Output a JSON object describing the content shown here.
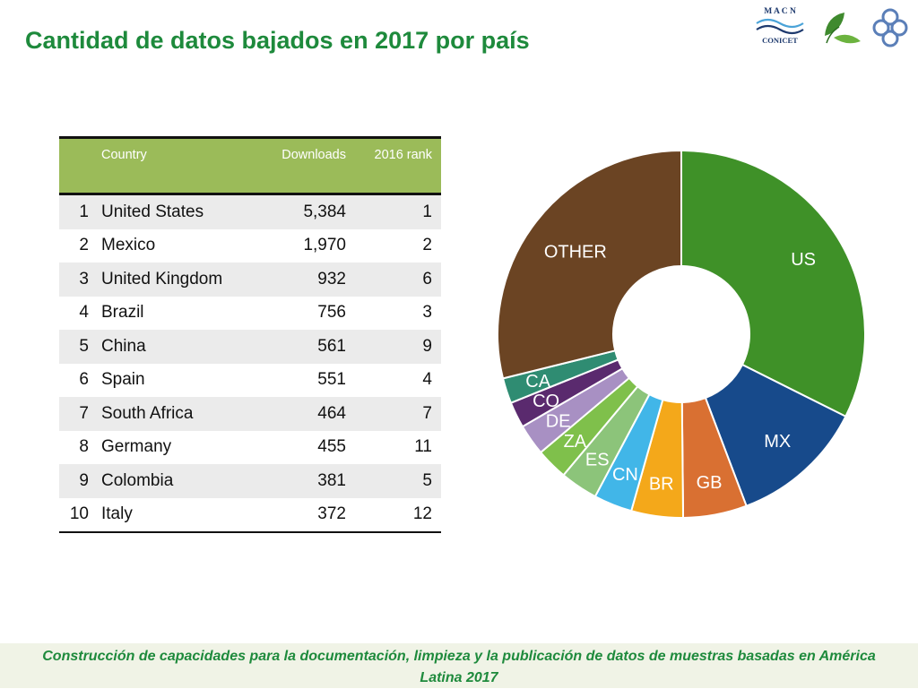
{
  "page": {
    "title": "Cantidad de datos bajados en 2017 por país",
    "footer_line1": "Construcción de capacidades para la documentación, limpieza y la publicación de datos de muestras basadas en América",
    "footer_line2": "Latina 2017"
  },
  "logos": {
    "macn_text": "M A C N",
    "conicet_text": "CONICET",
    "icons": [
      "macn-conicet-logo",
      "leaf-icon",
      "rings-icon"
    ]
  },
  "table": {
    "headers": {
      "index": "",
      "country": "Country",
      "downloads": "Downloads",
      "rank2016": "2016 rank"
    },
    "rows": [
      {
        "n": "1",
        "country": "United States",
        "downloads": "5,384",
        "rank2016": "1"
      },
      {
        "n": "2",
        "country": "Mexico",
        "downloads": "1,970",
        "rank2016": "2"
      },
      {
        "n": "3",
        "country": "United Kingdom",
        "downloads": "932",
        "rank2016": "6"
      },
      {
        "n": "4",
        "country": "Brazil",
        "downloads": "756",
        "rank2016": "3"
      },
      {
        "n": "5",
        "country": "China",
        "downloads": "561",
        "rank2016": "9"
      },
      {
        "n": "6",
        "country": "Spain",
        "downloads": "551",
        "rank2016": "4"
      },
      {
        "n": "7",
        "country": "South Africa",
        "downloads": "464",
        "rank2016": "7"
      },
      {
        "n": "8",
        "country": "Germany",
        "downloads": "455",
        "rank2016": "11"
      },
      {
        "n": "9",
        "country": "Colombia",
        "downloads": "381",
        "rank2016": "5"
      },
      {
        "n": "10",
        "country": "Italy",
        "downloads": "372",
        "rank2016": "12"
      }
    ]
  },
  "chart_data": [
    {
      "type": "table",
      "columns": [
        "",
        "Country",
        "Downloads",
        "2016 rank"
      ],
      "rows": [
        [
          "1",
          "United States",
          5384,
          1
        ],
        [
          "2",
          "Mexico",
          1970,
          2
        ],
        [
          "3",
          "United Kingdom",
          932,
          6
        ],
        [
          "4",
          "Brazil",
          756,
          3
        ],
        [
          "5",
          "China",
          561,
          9
        ],
        [
          "6",
          "Spain",
          551,
          4
        ],
        [
          "7",
          "South Africa",
          464,
          7
        ],
        [
          "8",
          "Germany",
          455,
          11
        ],
        [
          "9",
          "Colombia",
          381,
          5
        ],
        [
          "10",
          "Italy",
          372,
          12
        ]
      ]
    },
    {
      "type": "pie",
      "donut": true,
      "start": "top, clockwise",
      "slices": [
        {
          "label": "US",
          "value": 5384,
          "color": "#3f9128"
        },
        {
          "label": "MX",
          "value": 1970,
          "color": "#174a8b"
        },
        {
          "label": "GB",
          "value": 932,
          "color": "#d97032"
        },
        {
          "label": "BR",
          "value": 756,
          "color": "#f4a81a"
        },
        {
          "label": "CN",
          "value": 561,
          "color": "#41b6e8"
        },
        {
          "label": "ES",
          "value": 551,
          "color": "#8cc47a"
        },
        {
          "label": "ZA",
          "value": 464,
          "color": "#7fc04b"
        },
        {
          "label": "DE",
          "value": 455,
          "color": "#a890c3"
        },
        {
          "label": "CO",
          "value": 381,
          "color": "#5a2a6e"
        },
        {
          "label": "CA",
          "value": 370,
          "color": "#2f8c72"
        },
        {
          "label": "OTHER",
          "value": 4800,
          "color": "#6b4423"
        }
      ]
    }
  ]
}
